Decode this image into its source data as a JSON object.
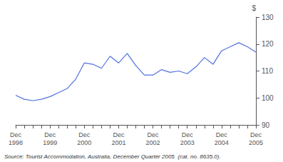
{
  "chart_data": {
    "type": "line",
    "ylabel": "$",
    "source": "Source: Tourist Accommodation, Australia, December Quarter 2005  (cat. no. 8635.0).",
    "categories": [
      "Dec\n1998",
      null,
      null,
      null,
      "Dec\n1999",
      null,
      null,
      null,
      "Dec\n2000",
      null,
      null,
      null,
      "Dec\n2001",
      null,
      null,
      null,
      "Dec\n2002",
      null,
      null,
      null,
      "Dec\n2003",
      null,
      null,
      null,
      "Dec\n2004",
      null,
      null,
      null,
      "Dec\n2005"
    ],
    "values": [
      101.0,
      99.5,
      99.0,
      99.5,
      100.5,
      102.0,
      103.5,
      107.0,
      113.0,
      112.5,
      111.0,
      115.5,
      113.0,
      116.5,
      112.0,
      108.5,
      108.5,
      110.5,
      109.5,
      110.0,
      109.0,
      111.5,
      115.0,
      112.5,
      117.5,
      119.0,
      120.5,
      119.0,
      117.0
    ],
    "ylim": [
      90,
      130
    ],
    "yticks": [
      90,
      100,
      110,
      120,
      130
    ],
    "grid": false
  }
}
